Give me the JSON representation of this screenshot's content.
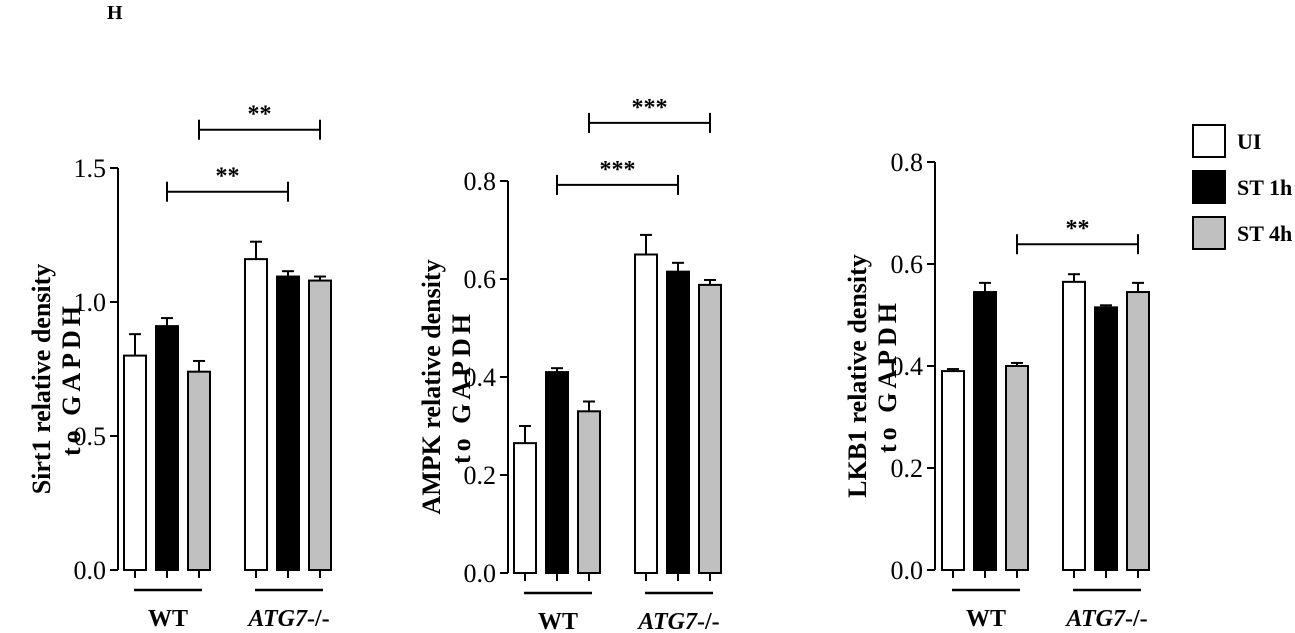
{
  "panel_label": "H",
  "legend": {
    "placement": "top-right",
    "items": [
      {
        "label": "UI",
        "color": "#ffffff"
      },
      {
        "label": "ST 1h",
        "color": "#000000"
      },
      {
        "label": "ST 4h",
        "color": "#c0c0c0"
      }
    ]
  },
  "colors": {
    "UI": "#ffffff",
    "ST 1h": "#000000",
    "ST 4h": "#c0c0c0",
    "stroke": "#000000"
  },
  "chart_data": [
    {
      "type": "bar",
      "ylabel_line1": "Sirt1 relative density",
      "ylabel_line2": "to GAPDH",
      "ylim": [
        0,
        1.5
      ],
      "yticks": [
        0.0,
        0.5,
        1.0,
        1.5
      ],
      "ytick_labels": [
        "0.0",
        "0.5",
        "1.0",
        "1.5"
      ],
      "groups": [
        {
          "label": "WT",
          "italic_part": "",
          "rest": "WT"
        },
        {
          "label": "ATG7-/-",
          "italic_part": "ATG7",
          "rest": "-/-"
        }
      ],
      "series": [
        {
          "name": "UI",
          "values": [
            0.8,
            1.16
          ],
          "errors": [
            0.08,
            0.065
          ]
        },
        {
          "name": "ST 1h",
          "values": [
            0.91,
            1.095
          ],
          "errors": [
            0.03,
            0.02
          ]
        },
        {
          "name": "ST 4h",
          "values": [
            0.74,
            1.08
          ],
          "errors": [
            0.04,
            0.015
          ]
        }
      ],
      "significance": [
        {
          "from": [
            0,
            1
          ],
          "to": [
            1,
            1
          ],
          "label": "**"
        },
        {
          "from": [
            0,
            2
          ],
          "to": [
            1,
            2
          ],
          "label": "**"
        }
      ]
    },
    {
      "type": "bar",
      "ylabel_line1": "AMPK relative density",
      "ylabel_line2": "to GAPDH",
      "ylim": [
        0,
        0.8
      ],
      "yticks": [
        0.0,
        0.2,
        0.4,
        0.6,
        0.8
      ],
      "ytick_labels": [
        "0.0",
        "0.2",
        "0.4",
        "0.6",
        "0.8"
      ],
      "groups": [
        {
          "label": "WT",
          "italic_part": "",
          "rest": "WT"
        },
        {
          "label": "ATG7-/-",
          "italic_part": "ATG7",
          "rest": "-/-"
        }
      ],
      "series": [
        {
          "name": "UI",
          "values": [
            0.265,
            0.65
          ],
          "errors": [
            0.035,
            0.04
          ]
        },
        {
          "name": "ST 1h",
          "values": [
            0.41,
            0.615
          ],
          "errors": [
            0.008,
            0.018
          ]
        },
        {
          "name": "ST 4h",
          "values": [
            0.33,
            0.588
          ],
          "errors": [
            0.02,
            0.01
          ]
        }
      ],
      "significance": [
        {
          "from": [
            0,
            1
          ],
          "to": [
            1,
            1
          ],
          "label": "***"
        },
        {
          "from": [
            0,
            2
          ],
          "to": [
            1,
            2
          ],
          "label": "***"
        }
      ]
    },
    {
      "type": "bar",
      "ylabel_line1": "LKB1 relative density",
      "ylabel_line2": "to GAPDH",
      "ylim": [
        0,
        0.8
      ],
      "yticks": [
        0.0,
        0.2,
        0.4,
        0.6,
        0.8
      ],
      "ytick_labels": [
        "0.0",
        "0.2",
        "0.4",
        "0.6",
        "0.8"
      ],
      "groups": [
        {
          "label": "WT",
          "italic_part": "",
          "rest": "WT"
        },
        {
          "label": "ATG7-/-",
          "italic_part": "ATG7",
          "rest": "-/-"
        }
      ],
      "series": [
        {
          "name": "UI",
          "values": [
            0.39,
            0.565
          ],
          "errors": [
            0.004,
            0.015
          ]
        },
        {
          "name": "ST 1h",
          "values": [
            0.545,
            0.515
          ],
          "errors": [
            0.018,
            0.004
          ]
        },
        {
          "name": "ST 4h",
          "values": [
            0.4,
            0.545
          ],
          "errors": [
            0.006,
            0.018
          ]
        }
      ],
      "significance": [
        {
          "from": [
            0,
            2
          ],
          "to": [
            1,
            2
          ],
          "label": "**"
        }
      ]
    }
  ]
}
